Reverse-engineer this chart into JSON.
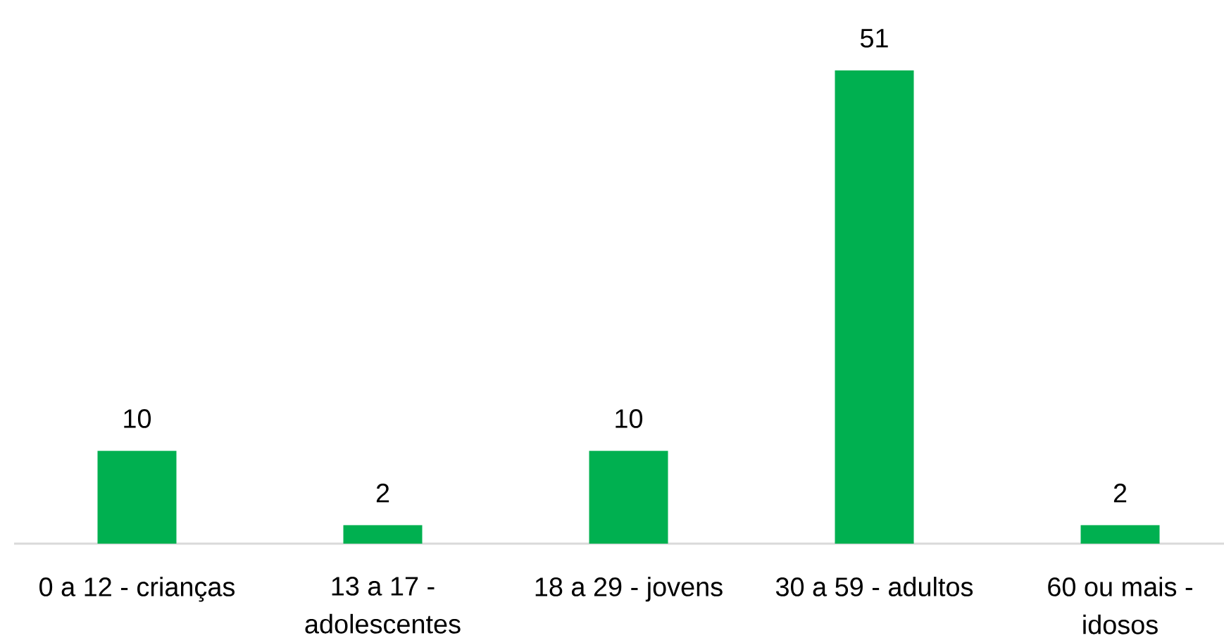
{
  "chart_data": {
    "type": "bar",
    "categories": [
      "0 a 12 - crianças",
      "13 a 17 - adolescentes",
      "18 a 29 - jovens",
      "30 a 59 - adultos",
      "60 ou mais - idosos"
    ],
    "values": [
      10,
      2,
      10,
      51,
      2
    ],
    "color": "#00b050",
    "data_labels": true
  }
}
